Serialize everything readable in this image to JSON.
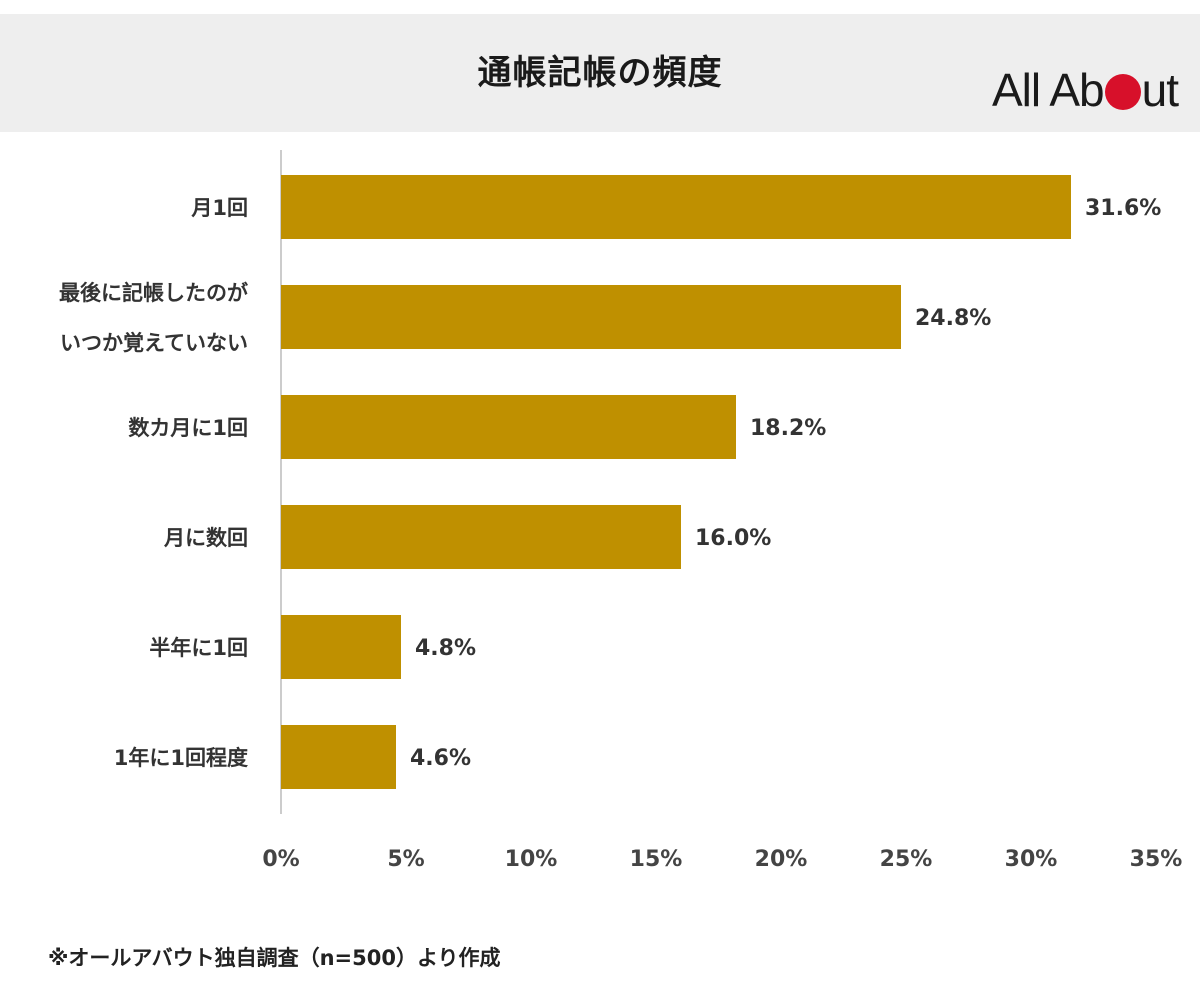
{
  "header": {
    "title": "通帳記帳の頻度",
    "logo_text_before": "All Ab",
    "logo_text_after": "ut",
    "logo_accent_color": "#d7102a"
  },
  "footnote": "※オールアバウト独自調査（n=500）より作成",
  "chart_data": {
    "type": "bar",
    "orientation": "horizontal",
    "title": "通帳記帳の頻度",
    "categories": [
      [
        "月1回"
      ],
      [
        "最後に記帳したのが",
        "いつか覚えていない"
      ],
      [
        "数カ月に1回"
      ],
      [
        "月に数回"
      ],
      [
        "半年に1回"
      ],
      [
        "1年に1回程度"
      ]
    ],
    "values": [
      31.6,
      24.8,
      18.2,
      16.0,
      4.8,
      4.6
    ],
    "value_labels": [
      "31.6%",
      "24.8%",
      "18.2%",
      "16.0%",
      "4.8%",
      "4.6%"
    ],
    "xlim": [
      0,
      35
    ],
    "ticks": [
      0,
      5,
      10,
      15,
      20,
      25,
      30,
      35
    ],
    "tick_labels": [
      "0%",
      "5%",
      "10%",
      "15%",
      "20%",
      "25%",
      "30%",
      "35%"
    ],
    "xlabel": "",
    "ylabel": "",
    "grid": false,
    "legend": "none",
    "bar_color": "#bf9000"
  }
}
